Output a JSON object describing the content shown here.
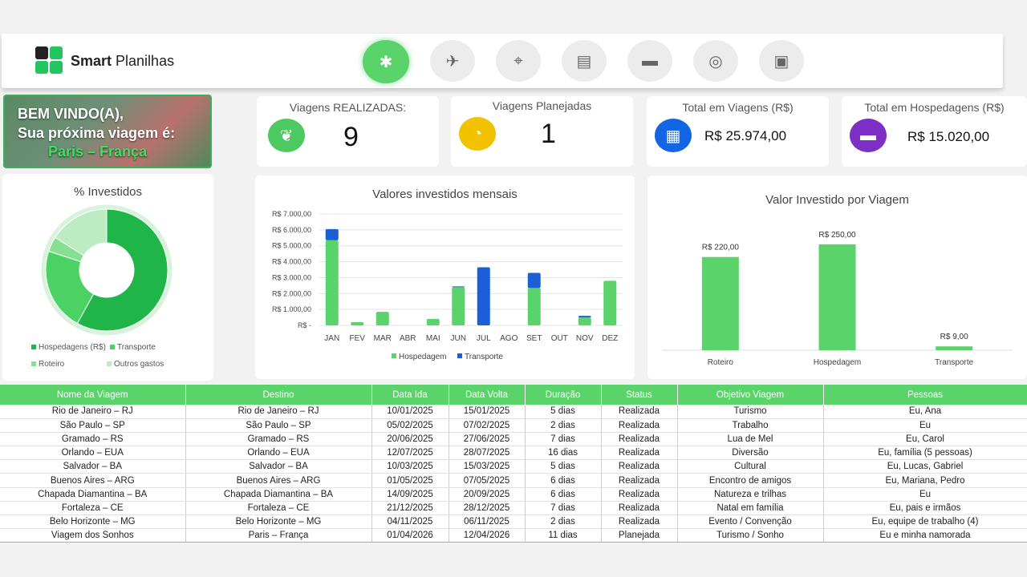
{
  "brand": {
    "bold": "Smart",
    "light": " Planilhas"
  },
  "nav": [
    {
      "icon": "network-icon",
      "glyph": "✱",
      "active": true
    },
    {
      "icon": "airplane-icon",
      "glyph": "✈",
      "active": false
    },
    {
      "icon": "route-icon",
      "glyph": "⌖",
      "active": false
    },
    {
      "icon": "contacts-icon",
      "glyph": "▤",
      "active": false
    },
    {
      "icon": "car-icon",
      "glyph": "▬",
      "active": false
    },
    {
      "icon": "coins-icon",
      "glyph": "◎",
      "active": false
    },
    {
      "icon": "luggage-icon",
      "glyph": "▣",
      "active": false
    }
  ],
  "welcome": {
    "line1": "BEM VINDO(A),",
    "line2": "Sua próxima viagem é:",
    "line3": "Paris – França"
  },
  "kpis": {
    "realizadas": {
      "title": "Viagens REALIZADAS:",
      "value": "9",
      "color": "#4cc960"
    },
    "planejadas": {
      "title": "Viagens Planejadas",
      "value": "1",
      "color": "#f2c200"
    },
    "total_viagens": {
      "title": "Total em Viagens (R$)",
      "value": "R$ 25.974,00",
      "color": "#1464e6"
    },
    "total_hospedagens": {
      "title": "Total em Hospedagens (R$)",
      "value": "R$ 15.020,00",
      "color": "#7b2fc4"
    }
  },
  "chart_data": [
    {
      "type": "pie",
      "title": "% Investidos",
      "categories": [
        "Hospedagens (R$)",
        "Transporte",
        "Roteiro",
        "Outros gastos"
      ],
      "values": [
        58,
        22,
        4,
        16
      ],
      "colors": [
        "#1fb548",
        "#4cd264",
        "#86e08f",
        "#bdecc2"
      ],
      "legend": "bottom"
    },
    {
      "type": "bar",
      "title": "Valores investidos mensais",
      "categories": [
        "JAN",
        "FEV",
        "MAR",
        "ABR",
        "MAI",
        "JUN",
        "JUL",
        "AGO",
        "SET",
        "OUT",
        "NOV",
        "DEZ"
      ],
      "series": [
        {
          "name": "Hospedagem",
          "color": "#5ad36b",
          "values": [
            5350,
            200,
            850,
            0,
            400,
            2400,
            0,
            0,
            2350,
            0,
            500,
            2800
          ]
        },
        {
          "name": "Transporte",
          "color": "#1a5fd6",
          "values": [
            700,
            0,
            0,
            0,
            0,
            50,
            3650,
            0,
            950,
            0,
            100,
            0
          ]
        }
      ],
      "ylim": [
        0,
        7000
      ],
      "yticks": [
        "R$ -",
        "R$ 1.000,00",
        "R$ 2.000,00",
        "R$ 3.000,00",
        "R$ 4.000,00",
        "R$ 5.000,00",
        "R$ 6.000,00",
        "R$ 7.000,00"
      ],
      "stacked": true,
      "legend": "bottom"
    },
    {
      "type": "bar",
      "title": "Valor Investido por Viagem",
      "categories": [
        "Roteiro",
        "Hospedagem",
        "Transporte"
      ],
      "values": [
        220,
        250,
        9
      ],
      "labels": [
        "R$ 220,00",
        "R$ 250,00",
        "R$ 9,00"
      ],
      "color": "#5ad36b",
      "ylim": [
        0,
        280
      ]
    }
  ],
  "table": {
    "headers": [
      "Nome da Viagem",
      "Destino",
      "Data Ida",
      "Data Volta",
      "Duração",
      "Status",
      "Objetivo Viagem",
      "Pessoas"
    ],
    "rows": [
      [
        "Rio de Janeiro – RJ",
        "Rio de Janeiro – RJ",
        "10/01/2025",
        "15/01/2025",
        "5 dias",
        "Realizada",
        "Turismo",
        "Eu, Ana"
      ],
      [
        "São Paulo – SP",
        "São Paulo – SP",
        "05/02/2025",
        "07/02/2025",
        "2 dias",
        "Realizada",
        "Trabalho",
        "Eu"
      ],
      [
        "Gramado – RS",
        "Gramado – RS",
        "20/06/2025",
        "27/06/2025",
        "7 dias",
        "Realizada",
        "Lua de Mel",
        "Eu, Carol"
      ],
      [
        "Orlando – EUA",
        "Orlando – EUA",
        "12/07/2025",
        "28/07/2025",
        "16 dias",
        "Realizada",
        "Diversão",
        "Eu, família (5 pessoas)"
      ],
      [
        "Salvador – BA",
        "Salvador – BA",
        "10/03/2025",
        "15/03/2025",
        "5 dias",
        "Realizada",
        "Cultural",
        "Eu, Lucas, Gabriel"
      ],
      [
        "Buenos Aires – ARG",
        "Buenos Aires – ARG",
        "01/05/2025",
        "07/05/2025",
        "6 dias",
        "Realizada",
        "Encontro de amigos",
        "Eu, Mariana, Pedro"
      ],
      [
        "Chapada Diamantina – BA",
        "Chapada Diamantina – BA",
        "14/09/2025",
        "20/09/2025",
        "6 dias",
        "Realizada",
        "Natureza e trilhas",
        "Eu"
      ],
      [
        "Fortaleza – CE",
        "Fortaleza – CE",
        "21/12/2025",
        "28/12/2025",
        "7 dias",
        "Realizada",
        "Natal em família",
        "Eu, pais e irmãos"
      ],
      [
        "Belo Horizonte – MG",
        "Belo Horizonte – MG",
        "04/11/2025",
        "06/11/2025",
        "2 dias",
        "Realizada",
        "Evento / Convenção",
        "Eu, equipe de trabalho (4)"
      ],
      [
        "Viagem dos Sonhos",
        "Paris – França",
        "01/04/2026",
        "12/04/2026",
        "11 dias",
        "Planejada",
        "Turismo / Sonho",
        "Eu e minha namorada"
      ]
    ]
  }
}
